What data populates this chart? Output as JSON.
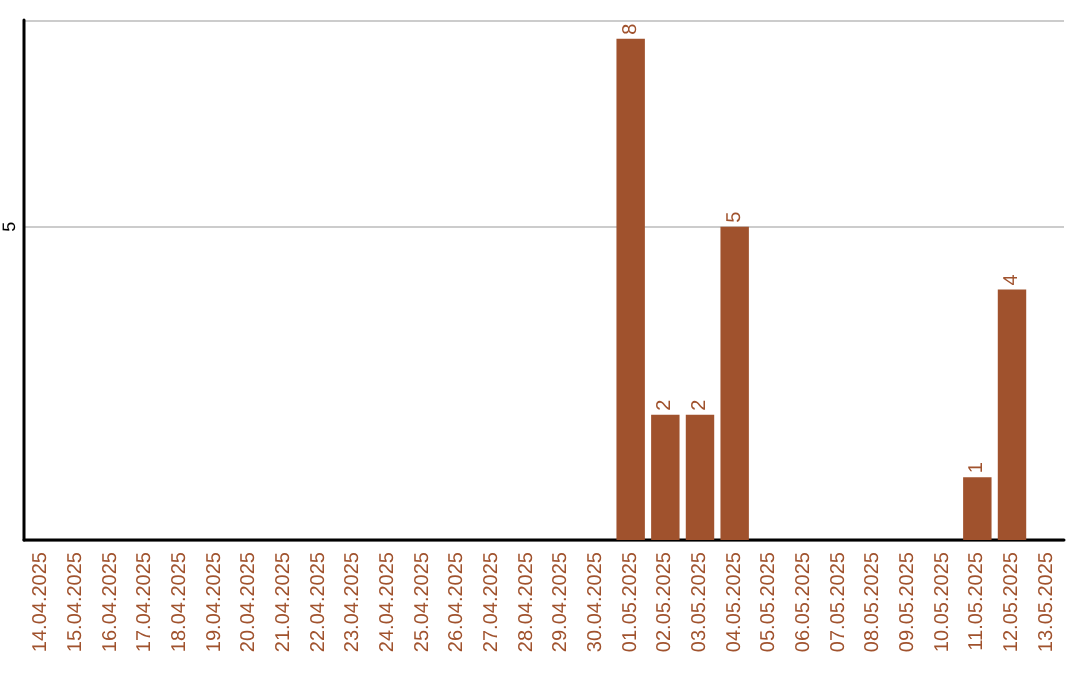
{
  "chart_data": {
    "type": "bar",
    "categories": [
      "14.04.2025",
      "15.04.2025",
      "16.04.2025",
      "17.04.2025",
      "18.04.2025",
      "19.04.2025",
      "20.04.2025",
      "21.04.2025",
      "22.04.2025",
      "23.04.2025",
      "24.04.2025",
      "25.04.2025",
      "26.04.2025",
      "27.04.2025",
      "28.04.2025",
      "29.04.2025",
      "30.04.2025",
      "01.05.2025",
      "02.05.2025",
      "03.05.2025",
      "04.05.2025",
      "05.05.2025",
      "06.05.2025",
      "07.05.2025",
      "08.05.2025",
      "09.05.2025",
      "10.05.2025",
      "11.05.2025",
      "12.05.2025",
      "13.05.2025"
    ],
    "values": [
      null,
      null,
      null,
      null,
      null,
      null,
      null,
      null,
      null,
      null,
      null,
      null,
      null,
      null,
      null,
      null,
      null,
      8,
      2,
      2,
      5,
      null,
      null,
      null,
      null,
      null,
      null,
      1,
      4,
      null
    ],
    "value_labels": [
      null,
      null,
      null,
      null,
      null,
      null,
      null,
      null,
      null,
      null,
      null,
      null,
      null,
      null,
      null,
      null,
      null,
      "8",
      "2",
      "2",
      "5",
      null,
      null,
      null,
      null,
      null,
      null,
      "1",
      "4",
      null
    ],
    "color": "#a0522d",
    "ylim": [
      0,
      8.3
    ],
    "yticks": [
      {
        "value": 0,
        "label": null
      },
      5
    ],
    "grid": "y"
  }
}
